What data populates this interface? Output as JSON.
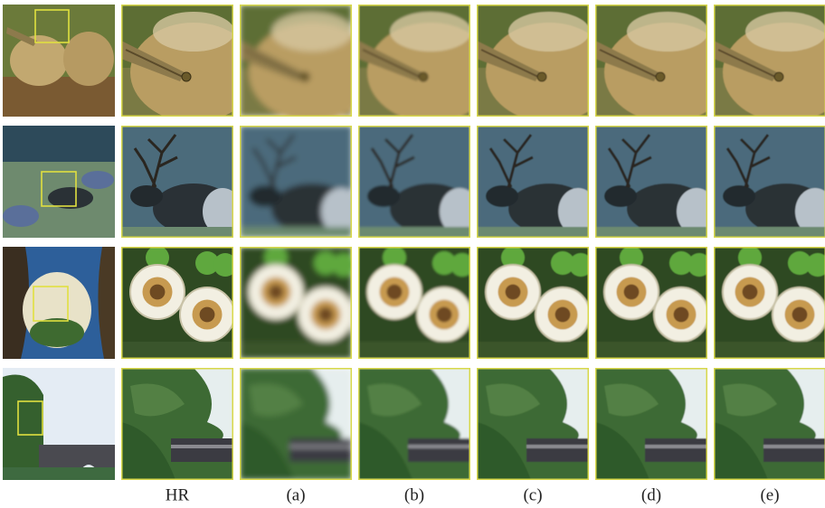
{
  "columns": [
    "HR",
    "(a)",
    "(b)",
    "(c)",
    "(d)",
    "(e)"
  ]
}
